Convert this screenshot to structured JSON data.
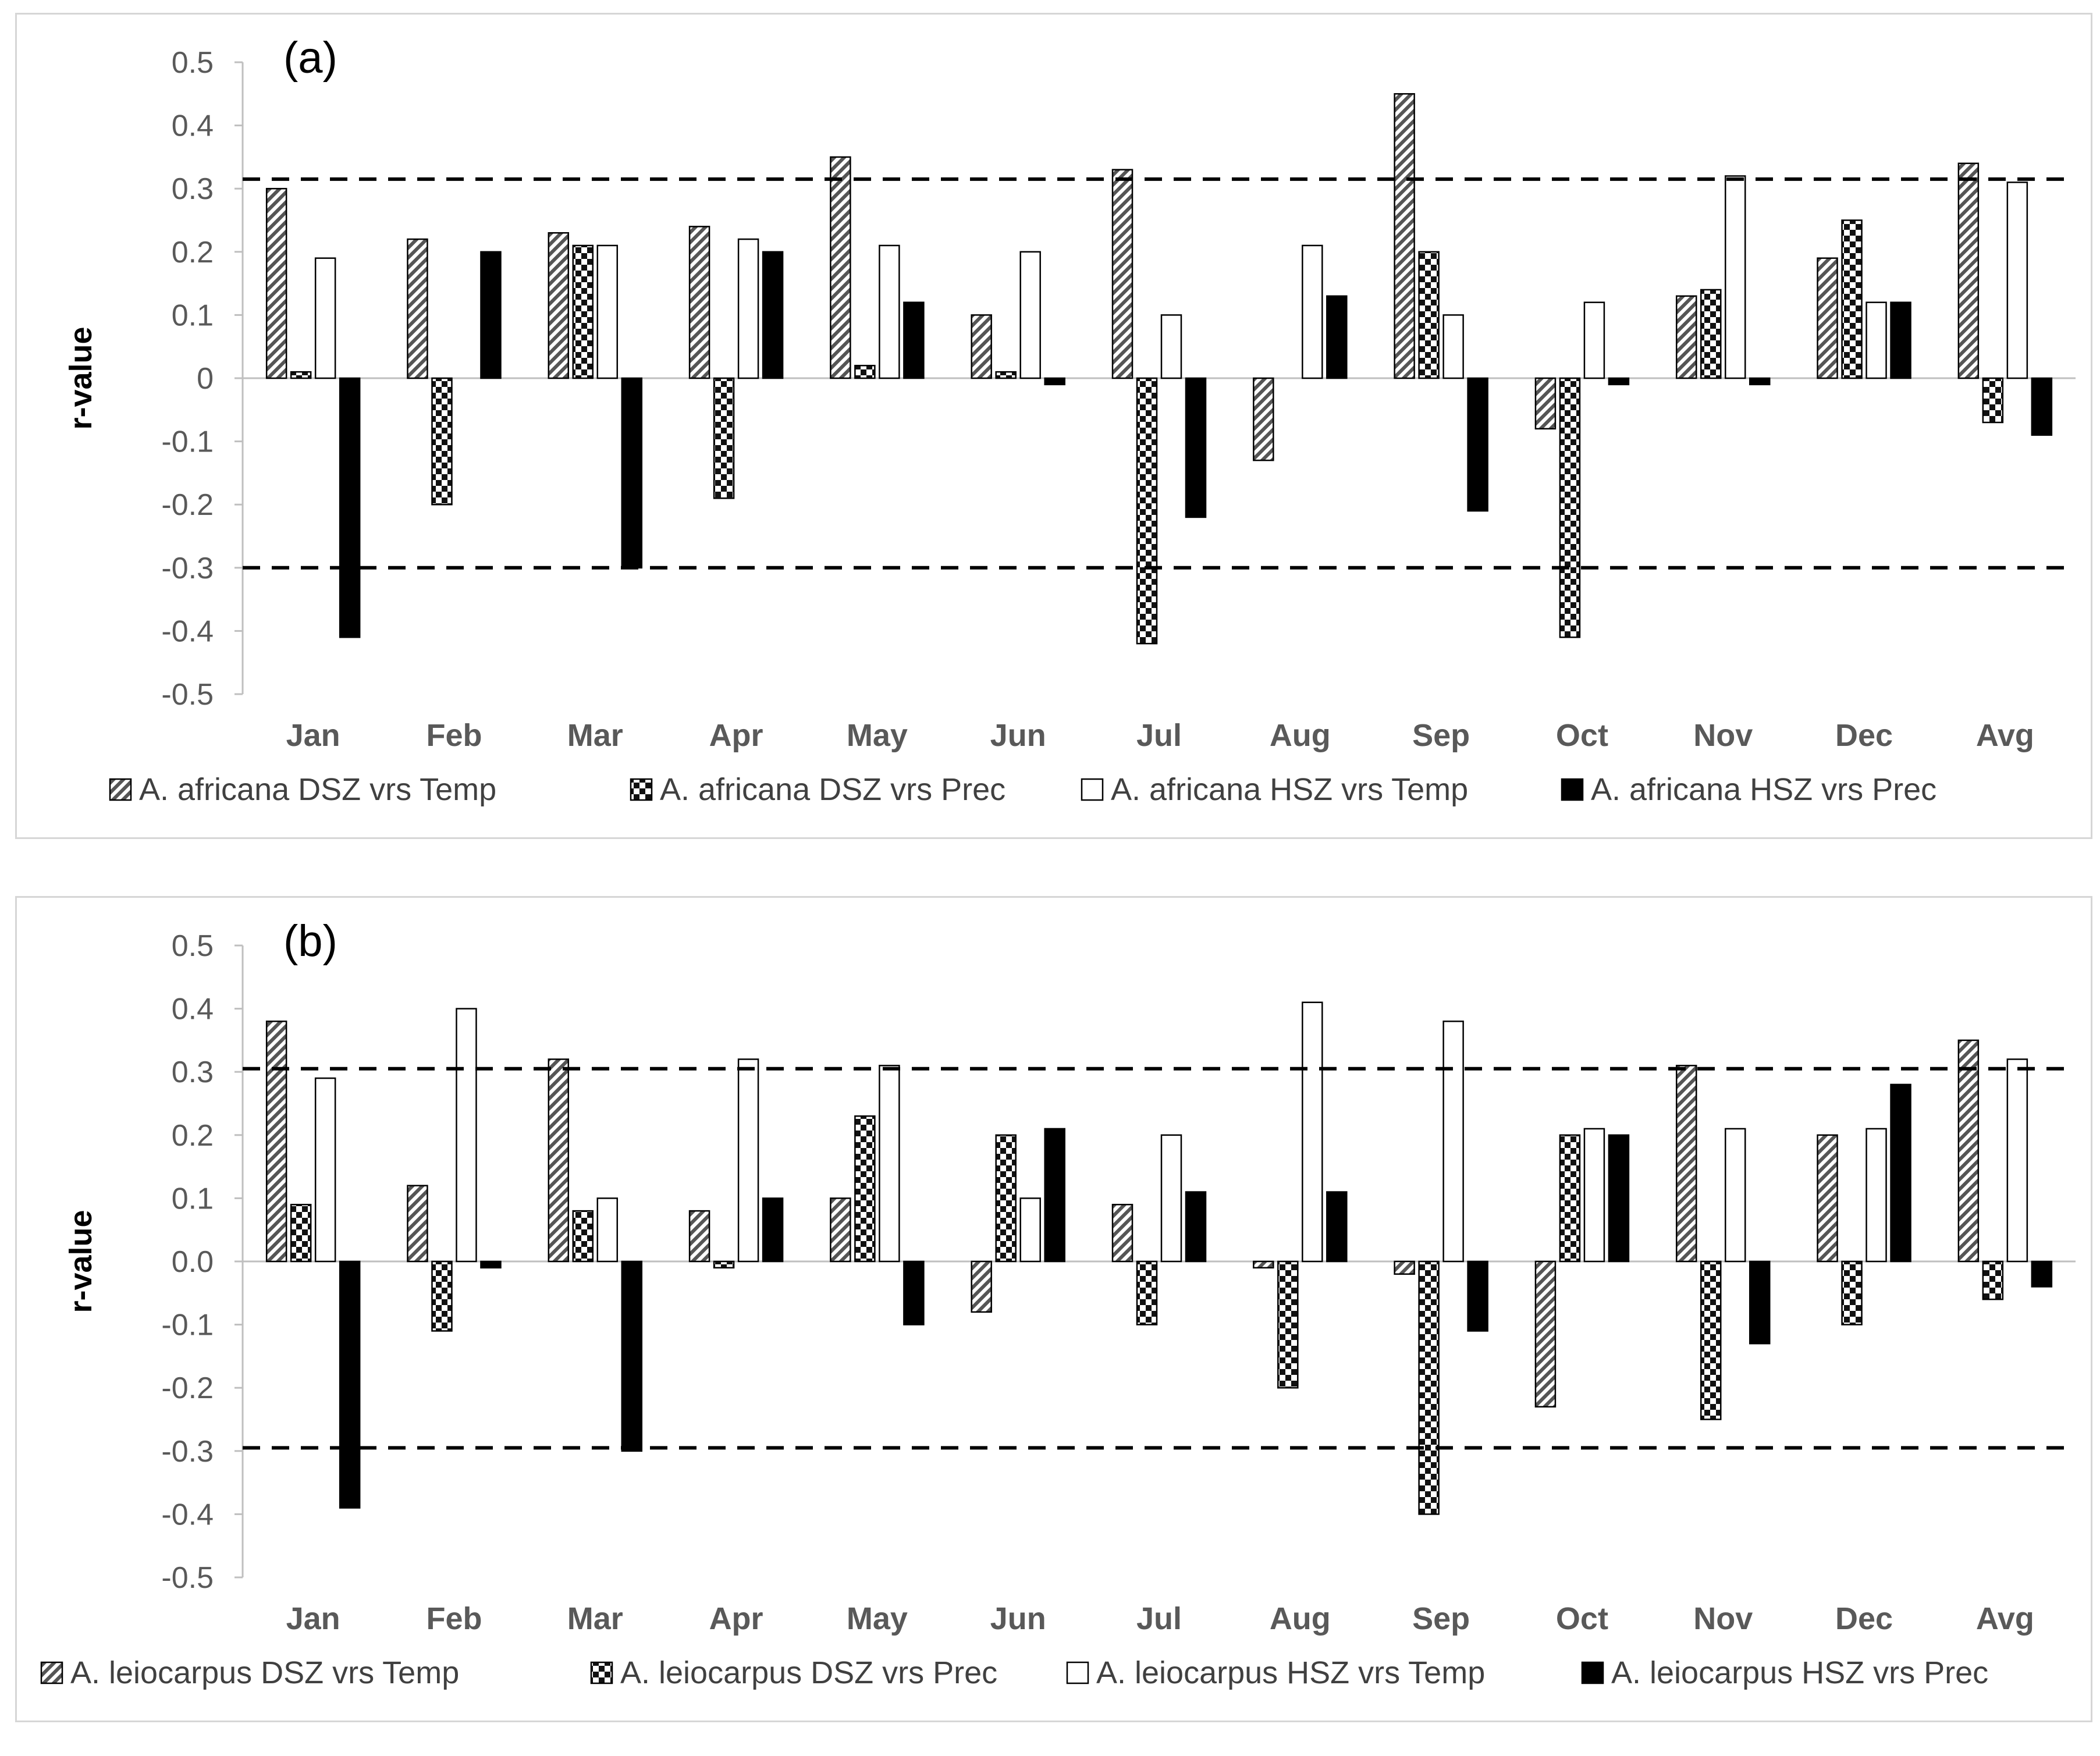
{
  "chart_data": [
    {
      "type": "bar",
      "panel_label": "(a)",
      "ylabel": "r-value",
      "ylim": [
        -0.5,
        0.5
      ],
      "yticks": [
        "0.5",
        "0.4",
        "0.3",
        "0.2",
        "0.1",
        "0",
        "-0.1",
        "-0.2",
        "-0.3",
        "-0.4",
        "-0.5"
      ],
      "reference_lines": [
        0.315,
        -0.3
      ],
      "categories": [
        "Jan",
        "Feb",
        "Mar",
        "Apr",
        "May",
        "Jun",
        "Jul",
        "Aug",
        "Sep",
        "Oct",
        "Nov",
        "Dec",
        "Avg"
      ],
      "series": [
        {
          "name": "A. africana  DSZ vrs Temp",
          "pattern": "hatch",
          "values": [
            0.3,
            0.22,
            0.23,
            0.24,
            0.35,
            0.1,
            0.33,
            -0.13,
            0.45,
            -0.08,
            0.13,
            0.19,
            0.34
          ]
        },
        {
          "name": "A. africana  DSZ vrs Prec",
          "pattern": "checker",
          "values": [
            0.01,
            -0.2,
            0.21,
            -0.19,
            0.02,
            0.01,
            -0.42,
            0.0,
            0.2,
            -0.41,
            0.14,
            0.25,
            -0.07
          ]
        },
        {
          "name": "A. africana  HSZ vrs Temp",
          "pattern": "white",
          "values": [
            0.19,
            0.0,
            0.21,
            0.22,
            0.21,
            0.2,
            0.1,
            0.21,
            0.1,
            0.12,
            0.32,
            0.12,
            0.31
          ]
        },
        {
          "name": "A. africana  HSZ vrs Prec",
          "pattern": "black",
          "values": [
            -0.41,
            0.2,
            -0.3,
            0.2,
            0.12,
            -0.01,
            -0.22,
            0.13,
            -0.21,
            -0.01,
            -0.01,
            0.12,
            -0.09
          ]
        }
      ],
      "legend_position": "bottom"
    },
    {
      "type": "bar",
      "panel_label": "(b)",
      "ylabel": "r-value",
      "ylim": [
        -0.5,
        0.5
      ],
      "yticks": [
        "0.5",
        "0.4",
        "0.3",
        "0.2",
        "0.1",
        "0.0",
        "-0.1",
        "-0.2",
        "-0.3",
        "-0.4",
        "-0.5"
      ],
      "reference_lines": [
        0.305,
        -0.295
      ],
      "categories": [
        "Jan",
        "Feb",
        "Mar",
        "Apr",
        "May",
        "Jun",
        "Jul",
        "Aug",
        "Sep",
        "Oct",
        "Nov",
        "Dec",
        "Avg"
      ],
      "series": [
        {
          "name": "A. leiocarpus  DSZ vrs Temp",
          "pattern": "hatch",
          "values": [
            0.38,
            0.12,
            0.32,
            0.08,
            0.1,
            -0.08,
            0.09,
            -0.01,
            -0.02,
            -0.23,
            0.31,
            0.2,
            0.35
          ]
        },
        {
          "name": "A. leiocarpus  DSZ vrs Prec",
          "pattern": "checker",
          "values": [
            0.09,
            -0.11,
            0.08,
            -0.01,
            0.23,
            0.2,
            -0.1,
            -0.2,
            -0.4,
            0.2,
            -0.25,
            -0.1,
            -0.06
          ]
        },
        {
          "name": "A. leiocarpus  HSZ vrs Temp",
          "pattern": "white",
          "values": [
            0.29,
            0.4,
            0.1,
            0.32,
            0.31,
            0.1,
            0.2,
            0.41,
            0.38,
            0.21,
            0.21,
            0.21,
            0.32
          ]
        },
        {
          "name": "A. leiocarpus HSZ vrs Prec",
          "pattern": "black",
          "values": [
            -0.39,
            -0.01,
            -0.3,
            0.1,
            -0.1,
            0.21,
            0.11,
            0.11,
            -0.11,
            0.2,
            -0.13,
            0.28,
            -0.04
          ]
        }
      ],
      "legend_position": "bottom"
    }
  ]
}
